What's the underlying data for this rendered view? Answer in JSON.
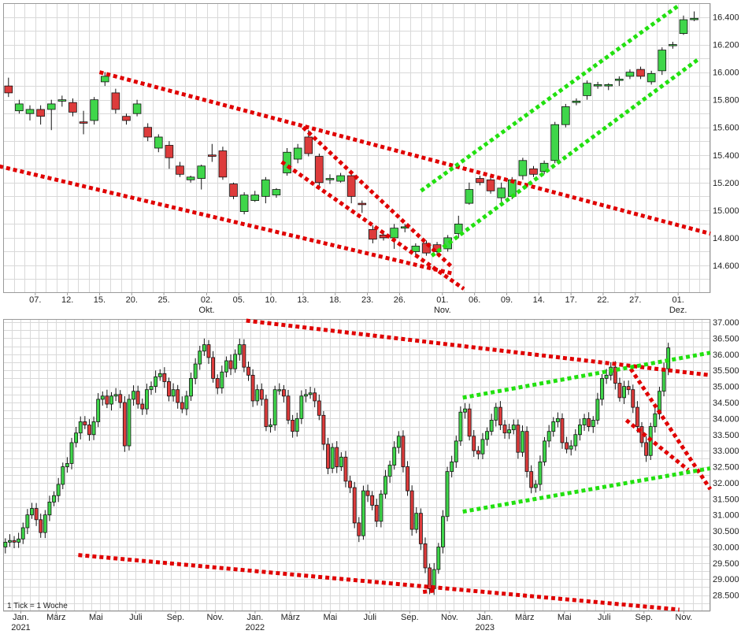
{
  "colors": {
    "up": "#3fd64a",
    "down": "#dd3b3b",
    "grid": "#d9d9d9",
    "border": "#9a9a9a",
    "trend_red": "#e00000",
    "trend_green": "#22e010",
    "text": "#222222"
  },
  "chart_data": [
    {
      "type": "candlestick",
      "period": "daily",
      "ylim": [
        14.4,
        16.5
      ],
      "y_ticks": [
        "14.600",
        "14.800",
        "15.000",
        "15.200",
        "15.400",
        "15.600",
        "15.800",
        "16.000",
        "16.200",
        "16.400"
      ],
      "x_ticks": [
        {
          "i": 3,
          "label": "07."
        },
        {
          "i": 6,
          "label": "12."
        },
        {
          "i": 9,
          "label": "15."
        },
        {
          "i": 12,
          "label": "20."
        },
        {
          "i": 15,
          "label": "25."
        },
        {
          "i": 19,
          "label": "02.",
          "sub": "Okt."
        },
        {
          "i": 22,
          "label": "05."
        },
        {
          "i": 25,
          "label": "10."
        },
        {
          "i": 28,
          "label": "13."
        },
        {
          "i": 31,
          "label": "18."
        },
        {
          "i": 34,
          "label": "23."
        },
        {
          "i": 37,
          "label": "26."
        },
        {
          "i": 41,
          "label": "01.",
          "sub": "Nov."
        },
        {
          "i": 44,
          "label": "06."
        },
        {
          "i": 47,
          "label": "09."
        },
        {
          "i": 50,
          "label": "14."
        },
        {
          "i": 53,
          "label": "17."
        },
        {
          "i": 56,
          "label": "22."
        },
        {
          "i": 59,
          "label": "27."
        },
        {
          "i": 63,
          "label": "01.",
          "sub": "Dez."
        }
      ],
      "candles": [
        [
          15.9,
          15.85,
          15.96,
          15.82
        ],
        [
          15.72,
          15.77,
          15.8,
          15.7
        ],
        [
          15.7,
          15.73,
          15.76,
          15.65
        ],
        [
          15.73,
          15.68,
          15.76,
          15.62
        ],
        [
          15.73,
          15.77,
          15.8,
          15.58
        ],
        [
          15.79,
          15.8,
          15.83,
          15.75
        ],
        [
          15.78,
          15.71,
          15.81,
          15.68
        ],
        [
          15.64,
          15.63,
          15.72,
          15.55
        ],
        [
          15.65,
          15.8,
          15.82,
          15.62
        ],
        [
          15.93,
          15.97,
          16.0,
          15.9
        ],
        [
          15.85,
          15.73,
          15.88,
          15.7
        ],
        [
          15.68,
          15.65,
          15.7,
          15.62
        ],
        [
          15.7,
          15.77,
          15.8,
          15.68
        ],
        [
          15.6,
          15.53,
          15.63,
          15.5
        ],
        [
          15.45,
          15.53,
          15.55,
          15.42
        ],
        [
          15.47,
          15.38,
          15.5,
          15.3
        ],
        [
          15.32,
          15.26,
          15.35,
          15.24
        ],
        [
          15.22,
          15.24,
          15.25,
          15.2
        ],
        [
          15.23,
          15.32,
          15.33,
          15.15
        ],
        [
          15.4,
          15.39,
          15.48,
          15.35
        ],
        [
          15.43,
          15.24,
          15.46,
          15.22
        ],
        [
          15.19,
          15.1,
          15.2,
          15.08
        ],
        [
          14.99,
          15.11,
          15.13,
          14.97
        ],
        [
          15.07,
          15.11,
          15.14,
          15.06
        ],
        [
          15.1,
          15.22,
          15.24,
          15.05
        ],
        [
          15.11,
          15.15,
          15.16,
          15.09
        ],
        [
          15.27,
          15.42,
          15.45,
          15.25
        ],
        [
          15.37,
          15.45,
          15.48,
          15.34
        ],
        [
          15.53,
          15.41,
          15.58,
          15.39
        ],
        [
          15.39,
          15.2,
          15.41,
          15.15
        ],
        [
          15.22,
          15.23,
          15.26,
          15.19
        ],
        [
          15.21,
          15.25,
          15.27,
          15.2
        ],
        [
          15.25,
          15.1,
          15.27,
          15.05
        ],
        [
          15.05,
          15.04,
          15.07,
          14.98
        ],
        [
          14.86,
          14.79,
          14.89,
          14.76
        ],
        [
          14.82,
          14.8,
          14.84,
          14.78
        ],
        [
          14.8,
          14.87,
          14.9,
          14.72
        ],
        [
          14.87,
          14.88,
          14.9,
          14.84
        ],
        [
          14.7,
          14.74,
          14.76,
          14.66
        ],
        [
          14.76,
          14.69,
          14.78,
          14.67
        ],
        [
          14.75,
          14.7,
          14.77,
          14.68
        ],
        [
          14.72,
          14.8,
          14.82,
          14.7
        ],
        [
          14.83,
          14.9,
          14.96,
          14.8
        ],
        [
          15.05,
          15.15,
          15.2,
          15.04
        ],
        [
          15.23,
          15.2,
          15.25,
          15.18
        ],
        [
          15.22,
          15.14,
          15.24,
          15.12
        ],
        [
          15.09,
          15.16,
          15.2,
          15.06
        ],
        [
          15.1,
          15.22,
          15.24,
          15.08
        ],
        [
          15.25,
          15.36,
          15.38,
          15.22
        ],
        [
          15.3,
          15.26,
          15.32,
          15.24
        ],
        [
          15.28,
          15.34,
          15.36,
          15.26
        ],
        [
          15.36,
          15.62,
          15.64,
          15.34
        ],
        [
          15.62,
          15.75,
          15.77,
          15.6
        ],
        [
          15.78,
          15.79,
          15.81,
          15.76
        ],
        [
          15.83,
          15.92,
          15.94,
          15.8
        ],
        [
          15.9,
          15.91,
          15.93,
          15.88
        ],
        [
          15.9,
          15.91,
          15.92,
          15.87
        ],
        [
          15.94,
          15.95,
          15.97,
          15.9
        ],
        [
          15.97,
          16.0,
          16.02,
          15.95
        ],
        [
          16.02,
          15.97,
          16.04,
          15.95
        ],
        [
          15.93,
          15.99,
          16.01,
          15.91
        ],
        [
          16.01,
          16.16,
          16.18,
          15.98
        ],
        [
          16.2,
          16.2,
          16.22,
          16.17
        ],
        [
          16.28,
          16.38,
          16.41,
          16.27
        ],
        [
          16.38,
          16.39,
          16.44,
          16.37
        ]
      ],
      "trendlines": [
        {
          "color": "red",
          "from": [
            9,
            16.0
          ],
          "to": [
            66,
            14.83
          ]
        },
        {
          "color": "red",
          "from": [
            -1,
            15.33
          ],
          "to": [
            42,
            14.54
          ]
        },
        {
          "color": "red",
          "from": [
            28,
            15.6
          ],
          "to": [
            42,
            14.58
          ]
        },
        {
          "color": "red",
          "from": [
            26,
            15.35
          ],
          "to": [
            43,
            14.43
          ]
        },
        {
          "color": "green",
          "from": [
            39,
            15.14
          ],
          "to": [
            63,
            16.48
          ]
        },
        {
          "color": "green",
          "from": [
            40,
            14.67
          ],
          "to": [
            65,
            16.1
          ]
        }
      ]
    },
    {
      "type": "candlestick",
      "period": "weekly",
      "ylim": [
        28.0,
        37.1
      ],
      "y_ticks": [
        "28.500",
        "29.000",
        "29.500",
        "30.000",
        "30.500",
        "31.000",
        "31.500",
        "32.000",
        "32.500",
        "33.000",
        "33.500",
        "34.000",
        "34.500",
        "35.000",
        "35.500",
        "36.000",
        "36.500",
        "37.000"
      ],
      "x_ticks": [
        {
          "i": 4,
          "label": "Jan.",
          "sub": "2021"
        },
        {
          "i": 12,
          "label": "März"
        },
        {
          "i": 21,
          "label": "Mai"
        },
        {
          "i": 30,
          "label": "Juli"
        },
        {
          "i": 39,
          "label": "Sep."
        },
        {
          "i": 48,
          "label": "Nov."
        },
        {
          "i": 57,
          "label": "Jan.",
          "sub": "2022"
        },
        {
          "i": 65,
          "label": "März"
        },
        {
          "i": 74,
          "label": "Mai"
        },
        {
          "i": 83,
          "label": "Juli"
        },
        {
          "i": 92,
          "label": "Sep."
        },
        {
          "i": 101,
          "label": "Nov."
        },
        {
          "i": 109,
          "label": "Jan.",
          "sub": "2023"
        },
        {
          "i": 118,
          "label": "März"
        },
        {
          "i": 127,
          "label": "Mai"
        },
        {
          "i": 136,
          "label": "Juli"
        },
        {
          "i": 145,
          "label": "Sep."
        },
        {
          "i": 154,
          "label": "Nov."
        }
      ],
      "close": [
        30.15,
        30.2,
        30.15,
        30.25,
        30.6,
        31.0,
        31.2,
        30.85,
        30.45,
        31.0,
        31.4,
        31.6,
        31.95,
        32.5,
        32.6,
        33.25,
        33.55,
        33.9,
        33.8,
        33.5,
        33.9,
        34.6,
        34.7,
        34.45,
        34.7,
        34.75,
        34.5,
        33.15,
        34.6,
        34.85,
        34.45,
        34.3,
        34.9,
        35.0,
        35.3,
        35.4,
        35.15,
        34.7,
        34.9,
        34.5,
        34.3,
        34.7,
        35.25,
        35.7,
        36.1,
        36.3,
        35.9,
        35.25,
        34.95,
        35.45,
        35.8,
        35.55,
        36.0,
        36.3,
        35.6,
        35.35,
        34.55,
        34.9,
        34.6,
        33.75,
        33.8,
        34.9,
        34.9,
        34.7,
        33.95,
        33.6,
        34.0,
        34.7,
        34.75,
        34.8,
        34.55,
        34.1,
        33.2,
        32.45,
        33.1,
        32.5,
        32.8,
        32.05,
        31.85,
        30.75,
        30.35,
        31.75,
        31.6,
        31.3,
        30.8,
        31.65,
        32.2,
        32.55,
        33.1,
        33.45,
        32.5,
        31.75,
        30.55,
        31.05,
        30.1,
        29.35,
        28.7,
        29.3,
        30.0,
        30.95,
        32.35,
        32.65,
        33.3,
        34.2,
        34.3,
        33.45,
        33.0,
        32.9,
        33.35,
        33.6,
        33.95,
        34.35,
        33.8,
        33.55,
        33.65,
        33.8,
        32.95,
        33.6,
        32.35,
        31.85,
        31.95,
        32.65,
        33.3,
        33.6,
        33.9,
        34.0,
        33.25,
        33.05,
        33.15,
        33.5,
        33.8,
        34.0,
        33.75,
        33.95,
        34.6,
        35.25,
        35.35,
        35.6,
        35.1,
        34.65,
        35.0,
        34.9,
        34.35,
        33.75,
        33.25,
        32.85,
        33.75,
        34.15,
        34.85,
        35.55,
        36.2
      ],
      "trendlines": [
        {
          "color": "red",
          "from": [
            55,
            37.05
          ],
          "to": [
            160,
            35.35
          ]
        },
        {
          "color": "red",
          "from": [
            142,
            35.55
          ],
          "to": [
            160,
            31.8
          ]
        },
        {
          "color": "red",
          "from": [
            141,
            33.95
          ],
          "to": [
            155,
            32.4
          ]
        },
        {
          "color": "red",
          "from": [
            17,
            29.75
          ],
          "to": [
            153,
            28.05
          ]
        },
        {
          "color": "red",
          "from": [
            95,
            28.6
          ],
          "to": [
            98,
            28.65
          ]
        },
        {
          "color": "green",
          "from": [
            104,
            34.65
          ],
          "to": [
            160,
            36.05
          ]
        },
        {
          "color": "green",
          "from": [
            104,
            31.1
          ],
          "to": [
            160,
            32.45
          ]
        }
      ],
      "annotation": "1 Tick = 1 Woche"
    }
  ]
}
